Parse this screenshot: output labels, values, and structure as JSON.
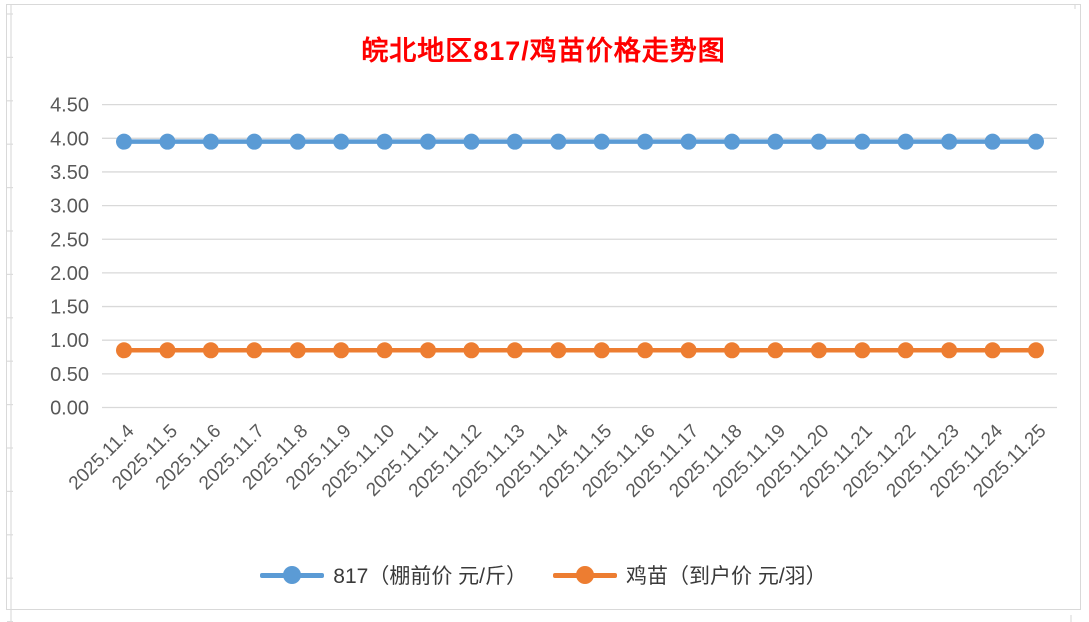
{
  "chart_data": {
    "type": "line",
    "title": "皖北地区817/鸡苗价格走势图",
    "title_color": "#ff0000",
    "categories": [
      "2025.11.4",
      "2025.11.5",
      "2025.11.6",
      "2025.11.7",
      "2025.11.8",
      "2025.11.9",
      "2025.11.10",
      "2025.11.11",
      "2025.11.12",
      "2025.11.13",
      "2025.11.14",
      "2025.11.15",
      "2025.11.16",
      "2025.11.17",
      "2025.11.18",
      "2025.11.19",
      "2025.11.20",
      "2025.11.21",
      "2025.11.22",
      "2025.11.23",
      "2025.11.24",
      "2025.11.25"
    ],
    "series": [
      {
        "name": "817（棚前价 元/斤）",
        "color": "#5b9bd5",
        "values": [
          3.95,
          3.95,
          3.95,
          3.95,
          3.95,
          3.95,
          3.95,
          3.95,
          3.95,
          3.95,
          3.95,
          3.95,
          3.95,
          3.95,
          3.95,
          3.95,
          3.95,
          3.95,
          3.95,
          3.95,
          3.95,
          3.95
        ]
      },
      {
        "name": "鸡苗（到户价 元/羽）",
        "color": "#ed7d31",
        "values": [
          0.85,
          0.85,
          0.85,
          0.85,
          0.85,
          0.85,
          0.85,
          0.85,
          0.85,
          0.85,
          0.85,
          0.85,
          0.85,
          0.85,
          0.85,
          0.85,
          0.85,
          0.85,
          0.85,
          0.85,
          0.85,
          0.85
        ]
      }
    ],
    "ylim": [
      0,
      4.5
    ],
    "y_tick_step": 0.5,
    "y_tick_labels": [
      "0.00",
      "0.50",
      "1.00",
      "1.50",
      "2.00",
      "2.50",
      "3.00",
      "3.50",
      "4.00",
      "4.50"
    ],
    "xlabel": "",
    "ylabel": "",
    "grid": true,
    "legend_position": "bottom",
    "gridline_color": "#d9d9d9",
    "axis_text_color": "#595959"
  }
}
